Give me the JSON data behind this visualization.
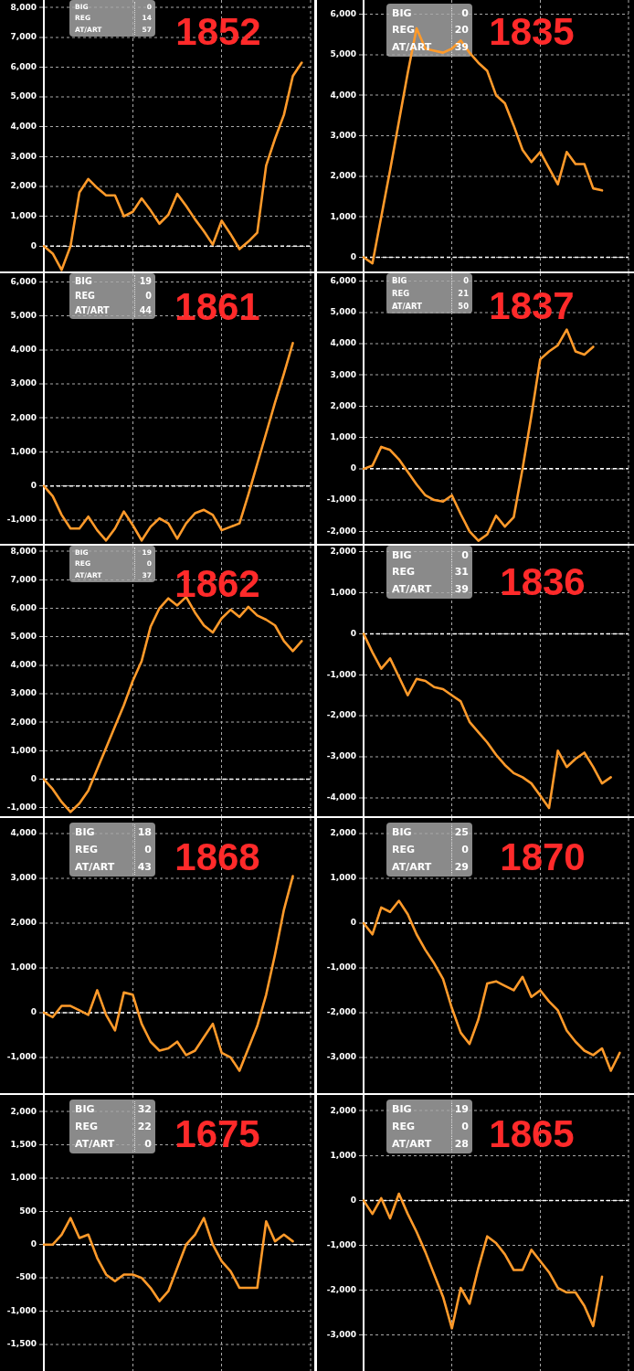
{
  "chart_data": [
    {
      "type": "line",
      "title": "1852",
      "annotations": [
        "BIG",
        "0",
        "REG",
        "14",
        "AT/ART",
        "57"
      ],
      "categories": [
        null,
        null,
        null,
        null,
        null,
        null,
        null,
        null,
        null,
        null,
        null,
        null,
        null,
        null,
        null,
        null,
        null,
        null,
        null,
        null,
        null,
        null,
        null,
        null,
        null,
        null,
        null,
        null,
        null,
        null,
        null
      ],
      "values": [
        0,
        -250,
        -800,
        0,
        1800,
        2250,
        1950,
        1700,
        1700,
        1000,
        1150,
        1600,
        1200,
        750,
        1050,
        1750,
        1350,
        900,
        500,
        50,
        850,
        400,
        -100,
        150,
        450,
        2700,
        3600,
        4400,
        5700,
        6150,
        null
      ],
      "color": "#ff9a2a",
      "ylim": [
        -850,
        8250
      ],
      "yticks": [
        0,
        {
          "value": 1000,
          "label": "1,000"
        },
        {
          "value": 2000,
          "label": "2,000"
        },
        {
          "value": 3000,
          "label": "3,000"
        },
        {
          "value": 4000,
          "label": "4,000"
        },
        {
          "value": 5000,
          "label": "5,000"
        },
        {
          "value": 6000,
          "label": "6,000"
        },
        {
          "value": 7000,
          "label": "7,000"
        },
        {
          "value": 8000,
          "label": "8,000"
        }
      ],
      "grid": true,
      "tick_labels": "y",
      "ref_lines": [
        {
          "axis": "y",
          "value": 0,
          "color": "#ffffff",
          "line_style": "dashed"
        }
      ]
    },
    {
      "type": "line",
      "title": "1835",
      "annotations": [
        "BIG",
        "0",
        "REG",
        "20",
        "AT/ART",
        "39"
      ],
      "categories": [
        null,
        null,
        null,
        null,
        null,
        null,
        null,
        null,
        null,
        null,
        null,
        null,
        null,
        null,
        null,
        null,
        null,
        null,
        null,
        null,
        null,
        null,
        null,
        null,
        null,
        null,
        null,
        null,
        null,
        null,
        null
      ],
      "values": [
        0,
        -150,
        1000,
        2150,
        3350,
        4550,
        5650,
        5150,
        5100,
        5050,
        5150,
        5350,
        5050,
        4800,
        4600,
        4000,
        3800,
        3250,
        2650,
        2350,
        2600,
        2200,
        1800,
        2600,
        2300,
        2300,
        1700,
        1650,
        null,
        null,
        null
      ],
      "color": "#ff9a2a",
      "ylim": [
        -350,
        6350
      ],
      "yticks": [
        0,
        {
          "value": 1000,
          "label": "1,000"
        },
        {
          "value": 2000,
          "label": "2,000"
        },
        {
          "value": 3000,
          "label": "3,000"
        },
        {
          "value": 4000,
          "label": "4,000"
        },
        {
          "value": 5000,
          "label": "5,000"
        },
        {
          "value": 6000,
          "label": "6,000"
        }
      ],
      "grid": true,
      "tick_labels": "y",
      "ref_lines": [
        {
          "axis": "y",
          "value": 0,
          "color": "#ffffff",
          "line_style": "dashed"
        }
      ]
    },
    {
      "type": "line",
      "title": "1861",
      "annotations": [
        "BIG",
        "19",
        "REG",
        "0",
        "AT/ART",
        "44"
      ],
      "categories": [
        null,
        null,
        null,
        null,
        null,
        null,
        null,
        null,
        null,
        null,
        null,
        null,
        null,
        null,
        null,
        null,
        null,
        null,
        null,
        null,
        null,
        null,
        null,
        null,
        null,
        null,
        null,
        null,
        null,
        null,
        null
      ],
      "values": [
        0,
        -300,
        -850,
        -1250,
        -1250,
        -900,
        -1300,
        -1600,
        -1250,
        -750,
        -1150,
        -1600,
        -1200,
        -950,
        -1100,
        -1550,
        -1100,
        -800,
        -700,
        -850,
        -1300,
        -1200,
        -1100,
        -250,
        650,
        1550,
        2450,
        3300,
        4200,
        null,
        null
      ],
      "color": "#ff9a2a",
      "ylim": [
        -1700,
        6250
      ],
      "yticks": [
        {
          "value": -1000,
          "label": "-1,000"
        },
        0,
        {
          "value": 1000,
          "label": "1,000"
        },
        {
          "value": 2000,
          "label": "2,000"
        },
        {
          "value": 3000,
          "label": "3,000"
        },
        {
          "value": 4000,
          "label": "4,000"
        },
        {
          "value": 5000,
          "label": "5,000"
        },
        {
          "value": 6000,
          "label": "6,000"
        }
      ],
      "grid": true,
      "tick_labels": "y",
      "ref_lines": [
        {
          "axis": "y",
          "value": 0,
          "color": "#ffffff",
          "line_style": "dashed"
        }
      ]
    },
    {
      "type": "line",
      "title": "1837",
      "annotations": [
        "BIG",
        "0",
        "REG",
        "21",
        "AT/ART",
        "50"
      ],
      "categories": [
        null,
        null,
        null,
        null,
        null,
        null,
        null,
        null,
        null,
        null,
        null,
        null,
        null,
        null,
        null,
        null,
        null,
        null,
        null,
        null,
        null,
        null,
        null,
        null,
        null,
        null,
        null,
        null,
        null,
        null,
        null
      ],
      "values": [
        0,
        100,
        700,
        600,
        300,
        -100,
        -500,
        -850,
        -1000,
        -1050,
        -850,
        -1450,
        -2000,
        -2300,
        -2100,
        -1500,
        -1850,
        -1550,
        0,
        1700,
        3500,
        3750,
        3950,
        4450,
        3750,
        3650,
        3900,
        null,
        null,
        null,
        null
      ],
      "color": "#ff9a2a",
      "ylim": [
        -2400,
        6250
      ],
      "yticks": [
        {
          "value": -2000,
          "label": "-2,000"
        },
        {
          "value": -1000,
          "label": "-1,000"
        },
        0,
        {
          "value": 1000,
          "label": "1,000"
        },
        {
          "value": 2000,
          "label": "2,000"
        },
        {
          "value": 3000,
          "label": "3,000"
        },
        {
          "value": 4000,
          "label": "4,000"
        },
        {
          "value": 5000,
          "label": "5,000"
        },
        {
          "value": 6000,
          "label": "6,000"
        }
      ],
      "grid": true,
      "tick_labels": "y",
      "ref_lines": [
        {
          "axis": "y",
          "value": 0,
          "color": "#ffffff",
          "line_style": "dashed"
        }
      ]
    },
    {
      "type": "line",
      "title": "1862",
      "annotations": [
        "BIG",
        "19",
        "REG",
        "0",
        "AT/ART",
        "37"
      ],
      "categories": [
        null,
        null,
        null,
        null,
        null,
        null,
        null,
        null,
        null,
        null,
        null,
        null,
        null,
        null,
        null,
        null,
        null,
        null,
        null,
        null,
        null,
        null,
        null,
        null,
        null,
        null,
        null,
        null,
        null,
        null,
        null
      ],
      "values": [
        0,
        -350,
        -800,
        -1150,
        -850,
        -400,
        350,
        1100,
        1850,
        2600,
        3450,
        4150,
        5350,
        6000,
        6350,
        6100,
        6400,
        5850,
        5400,
        5150,
        5650,
        5950,
        5700,
        6050,
        5750,
        5600,
        5400,
        4850,
        4500,
        4850,
        null
      ],
      "color": "#ff9a2a",
      "ylim": [
        -1300,
        8200
      ],
      "yticks": [
        {
          "value": -1000,
          "label": "-1,000"
        },
        0,
        {
          "value": 1000,
          "label": "1,000"
        },
        {
          "value": 2000,
          "label": "2,000"
        },
        {
          "value": 3000,
          "label": "3,000"
        },
        {
          "value": 4000,
          "label": "4,000"
        },
        {
          "value": 5000,
          "label": "5,000"
        },
        {
          "value": 6000,
          "label": "6,000"
        },
        {
          "value": 7000,
          "label": "7,000"
        },
        {
          "value": 8000,
          "label": "8,000"
        }
      ],
      "grid": true,
      "tick_labels": "y",
      "ref_lines": [
        {
          "axis": "y",
          "value": 0,
          "color": "#ffffff",
          "line_style": "dashed"
        }
      ]
    },
    {
      "type": "line",
      "title": "1836",
      "annotations": [
        "BIG",
        "0",
        "REG",
        "31",
        "AT/ART",
        "39"
      ],
      "categories": [
        null,
        null,
        null,
        null,
        null,
        null,
        null,
        null,
        null,
        null,
        null,
        null,
        null,
        null,
        null,
        null,
        null,
        null,
        null,
        null,
        null,
        null,
        null,
        null,
        null,
        null,
        null,
        null,
        null,
        null,
        null
      ],
      "values": [
        0,
        -450,
        -850,
        -600,
        -1050,
        -1500,
        -1100,
        -1150,
        -1300,
        -1350,
        -1500,
        -1650,
        -2150,
        -2400,
        -2650,
        -2950,
        -3200,
        -3400,
        -3500,
        -3650,
        -3950,
        -4250,
        -2850,
        -3250,
        -3050,
        -2900,
        -3250,
        -3650,
        -3500,
        null,
        null
      ],
      "color": "#ff9a2a",
      "ylim": [
        -4450,
        2150
      ],
      "yticks": [
        {
          "value": -4000,
          "label": "-4,000"
        },
        {
          "value": -3000,
          "label": "-3,000"
        },
        {
          "value": -2000,
          "label": "-2,000"
        },
        {
          "value": -1000,
          "label": "-1,000"
        },
        0,
        {
          "value": 1000,
          "label": "1,000"
        },
        {
          "value": 2000,
          "label": "2,000"
        }
      ],
      "grid": true,
      "tick_labels": "y",
      "ref_lines": [
        {
          "axis": "y",
          "value": 0,
          "color": "#ffffff",
          "line_style": "dashed"
        }
      ]
    },
    {
      "type": "line",
      "title": "1868",
      "annotations": [
        "BIG",
        "18",
        "REG",
        "0",
        "AT/ART",
        "43"
      ],
      "categories": [
        null,
        null,
        null,
        null,
        null,
        null,
        null,
        null,
        null,
        null,
        null,
        null,
        null,
        null,
        null,
        null,
        null,
        null,
        null,
        null,
        null,
        null,
        null,
        null,
        null,
        null,
        null,
        null,
        null,
        null,
        null
      ],
      "values": [
        0,
        -100,
        150,
        150,
        50,
        -50,
        500,
        -50,
        -400,
        450,
        400,
        -250,
        -650,
        -850,
        -800,
        -650,
        -950,
        -850,
        -550,
        -250,
        -900,
        -1000,
        -1300,
        -800,
        -300,
        400,
        1300,
        2300,
        3050,
        null,
        null
      ],
      "color": "#ff9a2a",
      "ylim": [
        -1800,
        4350
      ],
      "yticks": [
        {
          "value": -1000,
          "label": "-1,000"
        },
        0,
        {
          "value": 1000,
          "label": "1,000"
        },
        {
          "value": 2000,
          "label": "2,000"
        },
        {
          "value": 3000,
          "label": "3,000"
        },
        {
          "value": 4000,
          "label": "4,000"
        }
      ],
      "grid": true,
      "tick_labels": "y",
      "ref_lines": [
        {
          "axis": "y",
          "value": 0,
          "color": "#ffffff",
          "line_style": "dashed"
        }
      ]
    },
    {
      "type": "line",
      "title": "1870",
      "annotations": [
        "BIG",
        "25",
        "REG",
        "0",
        "AT/ART",
        "29"
      ],
      "categories": [
        null,
        null,
        null,
        null,
        null,
        null,
        null,
        null,
        null,
        null,
        null,
        null,
        null,
        null,
        null,
        null,
        null,
        null,
        null,
        null,
        null,
        null,
        null,
        null,
        null,
        null,
        null,
        null,
        null,
        null,
        null
      ],
      "values": [
        0,
        -250,
        350,
        250,
        500,
        200,
        -250,
        -600,
        -900,
        -1250,
        -1900,
        -2450,
        -2700,
        -2150,
        -1350,
        -1300,
        -1400,
        -1500,
        -1200,
        -1650,
        -1500,
        -1750,
        -1950,
        -2400,
        -2650,
        -2850,
        -2950,
        -2800,
        -3300,
        -2900,
        null
      ],
      "color": "#ff9a2a",
      "ylim": [
        -3800,
        2350
      ],
      "yticks": [
        {
          "value": -3000,
          "label": "-3,000"
        },
        {
          "value": -2000,
          "label": "-2,000"
        },
        {
          "value": -1000,
          "label": "-1,000"
        },
        0,
        {
          "value": 1000,
          "label": "1,000"
        },
        {
          "value": 2000,
          "label": "2,000"
        }
      ],
      "grid": true,
      "tick_labels": "y",
      "ref_lines": [
        {
          "axis": "y",
          "value": 0,
          "color": "#ffffff",
          "line_style": "dashed"
        }
      ]
    },
    {
      "type": "line",
      "title": "1675",
      "annotations": [
        "BIG",
        "32",
        "REG",
        "22",
        "AT/ART",
        "0"
      ],
      "categories": [
        null,
        null,
        null,
        null,
        null,
        null,
        null,
        null,
        null,
        null,
        null,
        null,
        null,
        null,
        null,
        null,
        null,
        null,
        null,
        null,
        null,
        null,
        null,
        null,
        null,
        null,
        null,
        null,
        null,
        null,
        null
      ],
      "values": [
        0,
        0,
        150,
        400,
        100,
        150,
        -200,
        -450,
        -550,
        -450,
        -450,
        -500,
        -650,
        -850,
        -700,
        -350,
        0,
        150,
        400,
        0,
        -250,
        -400,
        -650,
        -650,
        -650,
        350,
        50,
        150,
        50,
        null,
        null
      ],
      "color": "#ff9a2a",
      "ylim": [
        -1900,
        2250
      ],
      "yticks": [
        {
          "value": -1500,
          "label": "-1,500"
        },
        {
          "value": -1000,
          "label": "-1,000"
        },
        -500,
        0,
        500,
        {
          "value": 1000,
          "label": "1,000"
        },
        {
          "value": 1500,
          "label": "1,500"
        },
        {
          "value": 2000,
          "label": "2,000"
        }
      ],
      "grid": true,
      "tick_labels": "y",
      "ref_lines": [
        {
          "axis": "y",
          "value": 0,
          "color": "#ffffff",
          "line_style": "dashed"
        }
      ]
    },
    {
      "type": "line",
      "title": "1865",
      "annotations": [
        "BIG",
        "19",
        "REG",
        "0",
        "AT/ART",
        "28"
      ],
      "categories": [
        null,
        null,
        null,
        null,
        null,
        null,
        null,
        null,
        null,
        null,
        null,
        null,
        null,
        null,
        null,
        null,
        null,
        null,
        null,
        null,
        null,
        null,
        null,
        null,
        null,
        null,
        null,
        null,
        null,
        null,
        null
      ],
      "values": [
        0,
        -300,
        50,
        -400,
        150,
        -300,
        -700,
        -1150,
        -1650,
        -2150,
        -2850,
        -1950,
        -2300,
        -1500,
        -800,
        -950,
        -1200,
        -1550,
        -1550,
        -1100,
        -1350,
        -1600,
        -1950,
        -2050,
        -2050,
        -2350,
        -2800,
        -1700,
        null,
        null,
        null
      ],
      "color": "#ff9a2a",
      "ylim": [
        -3800,
        2350
      ],
      "yticks": [
        {
          "value": -3000,
          "label": "-3,000"
        },
        {
          "value": -2000,
          "label": "-2,000"
        },
        {
          "value": -1000,
          "label": "-1,000"
        },
        0,
        {
          "value": 1000,
          "label": "1,000"
        },
        {
          "value": 2000,
          "label": "2,000"
        }
      ],
      "grid": true,
      "tick_labels": "y",
      "ref_lines": [
        {
          "axis": "y",
          "value": 0,
          "color": "#ffffff",
          "line_style": "dashed"
        }
      ]
    }
  ]
}
